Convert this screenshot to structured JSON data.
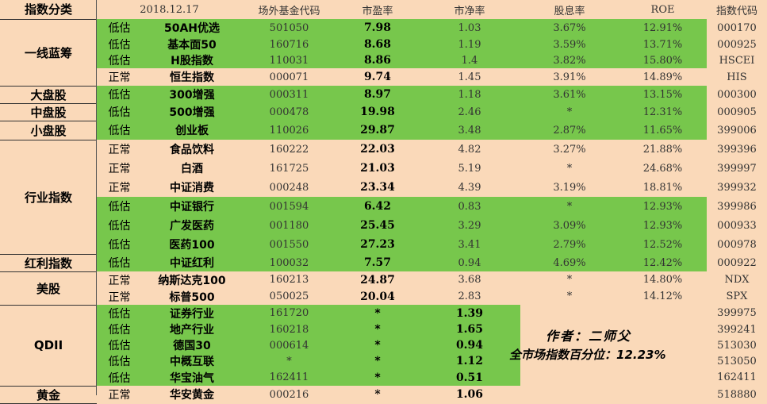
{
  "headers": [
    "指数分类",
    "2018.12.17",
    "场外基金代码",
    "市盈率",
    "市净率",
    "股息率",
    "ROE",
    "指数代码"
  ],
  "categories": [
    {
      "name": "一线蓝筹"
    },
    {
      "name": "大盘股"
    },
    {
      "name": "中盘股"
    },
    {
      "name": "小盘股"
    },
    {
      "name": "行业指数"
    },
    {
      "name": "红利指数"
    },
    {
      "name": "美股"
    },
    {
      "name": "QDII"
    },
    {
      "name": "黄金"
    }
  ],
  "rows": [
    {
      "status": "低估",
      "name": "50AH优选",
      "fund": "501050",
      "pe": "7.98",
      "pb": "1.03",
      "div": "3.67%",
      "roe": "12.91%",
      "code": "000170"
    },
    {
      "status": "低估",
      "name": "基本面50",
      "fund": "160716",
      "pe": "8.68",
      "pb": "1.19",
      "div": "3.59%",
      "roe": "13.71%",
      "code": "000925"
    },
    {
      "status": "低估",
      "name": "H股指数",
      "fund": "110031",
      "pe": "8.86",
      "pb": "1.4",
      "div": "3.82%",
      "roe": "15.80%",
      "code": "HSCEI"
    },
    {
      "status": "正常",
      "name": "恒生指数",
      "fund": "000071",
      "pe": "9.74",
      "pb": "1.45",
      "div": "3.91%",
      "roe": "14.89%",
      "code": "HIS"
    },
    {
      "status": "低估",
      "name": "300增强",
      "fund": "000311",
      "pe": "8.97",
      "pb": "1.18",
      "div": "3.61%",
      "roe": "13.15%",
      "code": "000300"
    },
    {
      "status": "低估",
      "name": "500增强",
      "fund": "000478",
      "pe": "19.98",
      "pb": "2.46",
      "div": "*",
      "roe": "12.31%",
      "code": "000905"
    },
    {
      "status": "低估",
      "name": "创业板",
      "fund": "110026",
      "pe": "29.87",
      "pb": "3.48",
      "div": "2.87%",
      "roe": "11.65%",
      "code": "399006"
    },
    {
      "status": "正常",
      "name": "食品饮料",
      "fund": "160222",
      "pe": "22.03",
      "pb": "4.82",
      "div": "3.27%",
      "roe": "21.88%",
      "code": "399396"
    },
    {
      "status": "正常",
      "name": "白酒",
      "fund": "161725",
      "pe": "21.03",
      "pb": "5.19",
      "div": "*",
      "roe": "24.68%",
      "code": "399997"
    },
    {
      "status": "正常",
      "name": "中证消费",
      "fund": "000248",
      "pe": "23.34",
      "pb": "4.39",
      "div": "3.19%",
      "roe": "18.81%",
      "code": "399932"
    },
    {
      "status": "低估",
      "name": "中证银行",
      "fund": "001594",
      "pe": "6.42",
      "pb": "0.83",
      "div": "*",
      "roe": "12.93%",
      "code": "399986"
    },
    {
      "status": "低估",
      "name": "广发医药",
      "fund": "001180",
      "pe": "25.45",
      "pb": "3.29",
      "div": "3.09%",
      "roe": "12.93%",
      "code": "000933"
    },
    {
      "status": "低估",
      "name": "医药100",
      "fund": "001550",
      "pe": "27.23",
      "pb": "3.41",
      "div": "2.79%",
      "roe": "12.52%",
      "code": "000978"
    },
    {
      "status": "低估",
      "name": "中证红利",
      "fund": "100032",
      "pe": "7.57",
      "pb": "0.94",
      "div": "4.69%",
      "roe": "12.42%",
      "code": "000922"
    },
    {
      "status": "正常",
      "name": "纳斯达克100",
      "fund": "160213",
      "pe": "24.87",
      "pb": "3.68",
      "div": "*",
      "roe": "14.80%",
      "code": "NDX"
    },
    {
      "status": "正常",
      "name": "标普500",
      "fund": "050025",
      "pe": "20.04",
      "pb": "2.83",
      "div": "*",
      "roe": "14.12%",
      "code": "SPX"
    },
    {
      "status": "低估",
      "name": "证券行业",
      "fund": "161720",
      "pe": "*",
      "pb": "1.39",
      "div": "",
      "roe": "",
      "code": "399975"
    },
    {
      "status": "低估",
      "name": "地产行业",
      "fund": "160218",
      "pe": "*",
      "pb": "1.65",
      "div": "",
      "roe": "",
      "code": "399241"
    },
    {
      "status": "低估",
      "name": "德国30",
      "fund": "000614",
      "pe": "*",
      "pb": "0.94",
      "div": "",
      "roe": "",
      "code": "513030"
    },
    {
      "status": "低估",
      "name": "中概互联",
      "fund": "*",
      "pe": "*",
      "pb": "1.12",
      "div": "",
      "roe": "",
      "code": "513050"
    },
    {
      "status": "低估",
      "name": "华宝油气",
      "fund": "162411",
      "pe": "*",
      "pb": "0.51",
      "div": "",
      "roe": "",
      "code": "162411"
    },
    {
      "status": "正常",
      "name": "华安黄金",
      "fund": "000216",
      "pe": "*",
      "pb": "1.06",
      "div": "",
      "roe": "",
      "code": "518880"
    }
  ],
  "notes": {
    "author": "作者：二师父",
    "market_percentile": "全市场指数百分位：12.23%"
  },
  "colors": {
    "background": "#fad9b9",
    "highlight_green": "#77c74c"
  }
}
